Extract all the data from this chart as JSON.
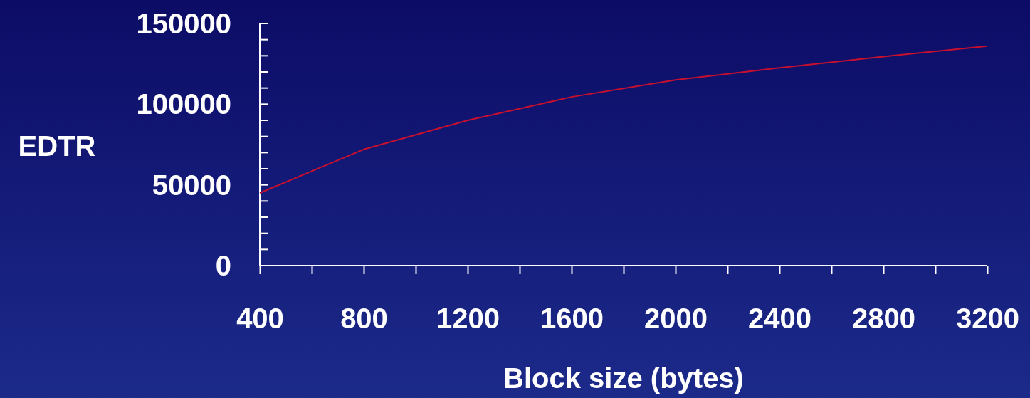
{
  "chart_data": {
    "type": "line",
    "xlabel": "Block size (bytes)",
    "ylabel": "EDTR",
    "x": [
      400,
      800,
      1200,
      1600,
      2000,
      2400,
      2800,
      3200
    ],
    "series": [
      {
        "color": "#c8102e",
        "values": [
          45000,
          72000,
          90000,
          104500,
          115000,
          122500,
          129500,
          136000
        ]
      }
    ],
    "xlim": [
      400,
      3200
    ],
    "ylim": [
      0,
      150000
    ],
    "xticks": [
      400,
      {
        "value": 600,
        "label": null
      },
      800,
      {
        "value": 1000,
        "label": null
      },
      1200,
      {
        "value": 1400,
        "label": null
      },
      1600,
      {
        "value": 1800,
        "label": null
      },
      2000,
      {
        "value": 2200,
        "label": null
      },
      2400,
      {
        "value": 2600,
        "label": null
      },
      2800,
      {
        "value": 3000,
        "label": null
      },
      3200
    ],
    "yticks": [
      0,
      {
        "value": 10000,
        "label": null
      },
      {
        "value": 20000,
        "label": null
      },
      {
        "value": 30000,
        "label": null
      },
      {
        "value": 40000,
        "label": null
      },
      50000,
      {
        "value": 60000,
        "label": null
      },
      {
        "value": 70000,
        "label": null
      },
      {
        "value": 80000,
        "label": null
      },
      {
        "value": 90000,
        "label": null
      },
      100000,
      {
        "value": 110000,
        "label": null
      },
      {
        "value": 120000,
        "label": null
      },
      {
        "value": 130000,
        "label": null
      },
      {
        "value": 140000,
        "label": null
      },
      150000
    ],
    "grid": false,
    "marker": "none",
    "line_style": "solid"
  }
}
